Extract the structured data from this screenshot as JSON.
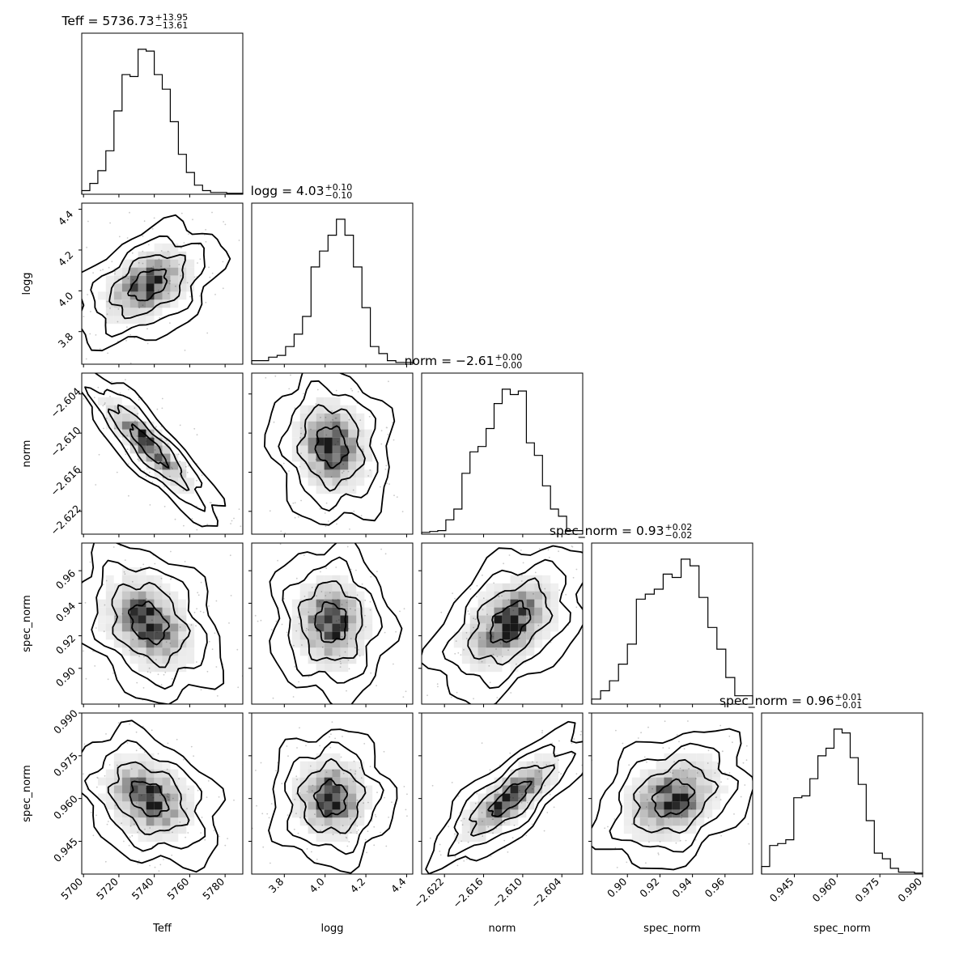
{
  "chart_data": {
    "type": "corner",
    "parameters": [
      {
        "name": "Teff",
        "title": "Teff = 5736.73",
        "title_plus": "+13.95",
        "title_minus": "−13.61",
        "range": [
          5699,
          5790
        ],
        "ticks": [
          5700,
          5720,
          5740,
          5760,
          5780
        ],
        "tick_labels": [
          "5700",
          "5720",
          "5740",
          "5760",
          "5780"
        ],
        "hist": [
          2,
          6,
          13,
          24,
          46,
          66,
          65,
          80,
          79,
          66,
          58,
          40,
          22,
          12,
          5,
          2,
          1,
          1,
          0.5,
          0.5
        ]
      },
      {
        "name": "logg",
        "title": "logg = 4.03",
        "title_plus": "+0.10",
        "title_minus": "−0.10",
        "range": [
          3.64,
          4.43
        ],
        "ticks": [
          3.8,
          4.0,
          4.2,
          4.4
        ],
        "tick_labels": [
          "3.8",
          "4.0",
          "4.2",
          "4.4"
        ],
        "hist": [
          2,
          2,
          4,
          5,
          10,
          17,
          27,
          55,
          64,
          73,
          82,
          73,
          55,
          32,
          10,
          6,
          2,
          1,
          1
        ]
      },
      {
        "name": "norm",
        "title": "norm = −2.61",
        "title_plus": "+0.00",
        "title_minus": "−0.00",
        "range": [
          -2.6255,
          -2.6008
        ],
        "ticks": [
          -2.622,
          -2.616,
          -2.61,
          -2.604
        ],
        "tick_labels": [
          "−2.622",
          "−2.616",
          "−2.610",
          "−2.604"
        ],
        "hist": [
          1,
          1.5,
          2,
          8,
          14,
          34,
          46,
          49,
          59,
          73,
          81,
          78,
          80,
          51,
          44,
          27,
          14,
          10,
          2,
          2
        ]
      },
      {
        "name": "spec_norm",
        "title": "spec_norm = 0.93",
        "title_plus": "+0.02",
        "title_minus": "−0.02",
        "range": [
          0.878,
          0.977
        ],
        "ticks": [
          0.9,
          0.92,
          0.94,
          0.96
        ],
        "tick_labels": [
          "0.90",
          "0.92",
          "0.94",
          "0.96"
        ],
        "hist": [
          3,
          8,
          14,
          24,
          36,
          63,
          66,
          69,
          78,
          76,
          87,
          83,
          64,
          46,
          33,
          16,
          5,
          5
        ]
      },
      {
        "name": "spec_norm",
        "title": "spec_norm = 0.96",
        "title_plus": "+0.01",
        "title_minus": "−0.01",
        "range": [
          0.9335,
          0.99
        ],
        "ticks": [
          0.945,
          0.96,
          0.975,
          0.99
        ],
        "tick_labels": [
          "0.945",
          "0.960",
          "0.975",
          "0.990"
        ],
        "hist": [
          4,
          15,
          16,
          18,
          40,
          41,
          50,
          62,
          66,
          76,
          74,
          61,
          47,
          28,
          11,
          8,
          3,
          1,
          1,
          0.5
        ]
      }
    ],
    "pairs": [
      {
        "x": 0,
        "y": 1,
        "center": [
          5736.7,
          4.03
        ],
        "sd": [
          13.8,
          0.1
        ],
        "rho": 0.42
      },
      {
        "x": 0,
        "y": 2,
        "center": [
          5736.7,
          -2.612
        ],
        "sd": [
          13.8,
          0.004
        ],
        "rho": -0.88
      },
      {
        "x": 1,
        "y": 2,
        "center": [
          4.03,
          -2.612
        ],
        "sd": [
          0.1,
          0.004
        ],
        "rho": -0.1
      },
      {
        "x": 0,
        "y": 3,
        "center": [
          5736.7,
          0.928
        ],
        "sd": [
          13.8,
          0.016
        ],
        "rho": -0.3
      },
      {
        "x": 1,
        "y": 3,
        "center": [
          4.03,
          0.928
        ],
        "sd": [
          0.1,
          0.016
        ],
        "rho": -0.05
      },
      {
        "x": 2,
        "y": 3,
        "center": [
          -2.612,
          0.928
        ],
        "sd": [
          0.004,
          0.016
        ],
        "rho": 0.45
      },
      {
        "x": 0,
        "y": 4,
        "center": [
          5736.7,
          0.96
        ],
        "sd": [
          13.8,
          0.008
        ],
        "rho": -0.35
      },
      {
        "x": 1,
        "y": 4,
        "center": [
          4.03,
          0.96
        ],
        "sd": [
          0.1,
          0.008
        ],
        "rho": 0.0
      },
      {
        "x": 2,
        "y": 4,
        "center": [
          -2.612,
          0.96
        ],
        "sd": [
          0.004,
          0.008
        ],
        "rho": 0.78
      },
      {
        "x": 3,
        "y": 4,
        "center": [
          0.928,
          0.96
        ],
        "sd": [
          0.016,
          0.008
        ],
        "rho": 0.3
      }
    ],
    "contour_levels_sigma": [
      0.5,
      1.0,
      1.5,
      2.0
    ],
    "colors": {
      "line": "#000000",
      "background": "#ffffff",
      "density": "#000000"
    }
  }
}
